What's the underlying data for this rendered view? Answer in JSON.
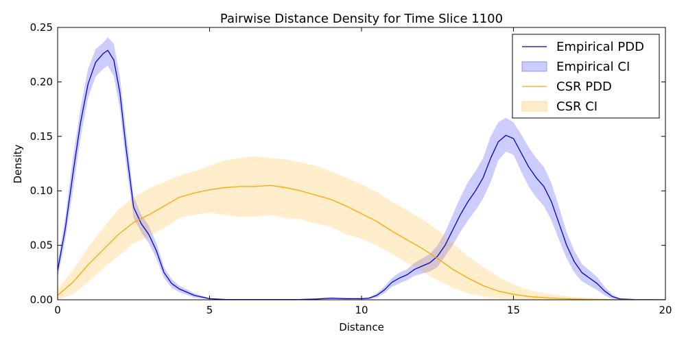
{
  "chart_data": {
    "type": "line",
    "title": "Pairwise Distance Density for Time Slice 1100",
    "xlabel": "Distance",
    "ylabel": "Density",
    "xlim": [
      0,
      20
    ],
    "ylim": [
      0,
      0.25
    ],
    "xticks": [
      0,
      5,
      10,
      15,
      20
    ],
    "xtick_labels": [
      "0",
      "5",
      "10",
      "15",
      "20"
    ],
    "yticks": [
      0.0,
      0.05,
      0.1,
      0.15,
      0.2,
      0.25
    ],
    "ytick_labels": [
      "0.00",
      "0.05",
      "0.10",
      "0.15",
      "0.20",
      "0.25"
    ],
    "grid": false,
    "legend_position": "top-right",
    "legend": [
      {
        "label": "Empirical PDD",
        "kind": "line",
        "color": "#0000cc"
      },
      {
        "label": "Empirical CI",
        "kind": "band",
        "color": "#0000ff"
      },
      {
        "label": "CSR PDD",
        "kind": "line",
        "color": "#ffa500"
      },
      {
        "label": "CSR CI",
        "kind": "band",
        "color": "#ffa500"
      }
    ],
    "series": [
      {
        "name": "Empirical PDD",
        "color": "#0000cc",
        "fill_color": "#0000ff",
        "x": [
          0,
          0.25,
          0.5,
          0.75,
          1.0,
          1.25,
          1.5,
          1.65,
          1.85,
          2.05,
          2.25,
          2.5,
          2.75,
          3.0,
          3.25,
          3.5,
          3.75,
          4.0,
          4.5,
          5.0,
          5.5,
          6,
          7,
          8,
          8.5,
          9,
          9.5,
          10,
          10.25,
          10.5,
          10.75,
          11,
          11.25,
          11.5,
          11.75,
          12,
          12.25,
          12.5,
          12.75,
          13,
          13.25,
          13.5,
          13.75,
          14,
          14.25,
          14.5,
          14.75,
          15,
          15.25,
          15.5,
          15.75,
          16,
          16.25,
          16.5,
          16.75,
          17,
          17.25,
          17.5,
          17.75,
          18,
          18.25,
          18.5,
          19,
          20
        ],
        "y": [
          0.027,
          0.065,
          0.115,
          0.162,
          0.198,
          0.218,
          0.226,
          0.229,
          0.22,
          0.19,
          0.14,
          0.085,
          0.07,
          0.06,
          0.045,
          0.025,
          0.015,
          0.01,
          0.004,
          0.001,
          0.0003,
          0.0002,
          0.0002,
          0.0003,
          0.0007,
          0.0015,
          0.001,
          0.001,
          0.0015,
          0.004,
          0.009,
          0.016,
          0.02,
          0.023,
          0.028,
          0.031,
          0.034,
          0.04,
          0.05,
          0.064,
          0.078,
          0.09,
          0.1,
          0.112,
          0.13,
          0.145,
          0.151,
          0.148,
          0.135,
          0.122,
          0.112,
          0.104,
          0.09,
          0.07,
          0.05,
          0.035,
          0.025,
          0.02,
          0.015,
          0.008,
          0.003,
          0.0008,
          0.0002,
          0.0001
        ],
        "ci_lower": [
          0.02,
          0.055,
          0.1,
          0.148,
          0.185,
          0.205,
          0.212,
          0.215,
          0.205,
          0.175,
          0.125,
          0.075,
          0.062,
          0.052,
          0.038,
          0.02,
          0.011,
          0.007,
          0.002,
          0.0005,
          0.0001,
          0.0001,
          0.0001,
          0.0001,
          0.0003,
          0.0008,
          0.0005,
          0.0005,
          0.0008,
          0.002,
          0.006,
          0.012,
          0.015,
          0.018,
          0.022,
          0.024,
          0.026,
          0.03,
          0.04,
          0.05,
          0.062,
          0.073,
          0.082,
          0.093,
          0.108,
          0.128,
          0.136,
          0.133,
          0.118,
          0.104,
          0.094,
          0.086,
          0.073,
          0.055,
          0.038,
          0.025,
          0.017,
          0.013,
          0.009,
          0.004,
          0.001,
          0.0003,
          0.0001,
          0.0
        ],
        "ci_upper": [
          0.034,
          0.075,
          0.13,
          0.175,
          0.212,
          0.23,
          0.236,
          0.241,
          0.235,
          0.205,
          0.155,
          0.095,
          0.078,
          0.068,
          0.052,
          0.03,
          0.019,
          0.013,
          0.006,
          0.0015,
          0.0005,
          0.0003,
          0.0003,
          0.0005,
          0.0011,
          0.0022,
          0.0015,
          0.0015,
          0.0022,
          0.006,
          0.012,
          0.02,
          0.025,
          0.028,
          0.034,
          0.038,
          0.042,
          0.05,
          0.062,
          0.078,
          0.094,
          0.108,
          0.118,
          0.13,
          0.15,
          0.163,
          0.167,
          0.163,
          0.152,
          0.14,
          0.13,
          0.122,
          0.107,
          0.085,
          0.062,
          0.045,
          0.033,
          0.027,
          0.021,
          0.012,
          0.005,
          0.0013,
          0.0003,
          0.0002
        ]
      },
      {
        "name": "CSR PDD",
        "color": "#ffa500",
        "fill_color": "#ffa500",
        "x": [
          0,
          0.5,
          1,
          1.5,
          2,
          2.5,
          3,
          3.5,
          4,
          4.5,
          5,
          5.5,
          6,
          6.5,
          7,
          7.5,
          8,
          8.5,
          9,
          9.5,
          10,
          10.5,
          11,
          11.5,
          12,
          12.5,
          13,
          13.5,
          14,
          14.5,
          15,
          15.5,
          16,
          16.5,
          17,
          17.5,
          18,
          18.5,
          19,
          20
        ],
        "y": [
          0.004,
          0.016,
          0.032,
          0.046,
          0.06,
          0.071,
          0.078,
          0.086,
          0.094,
          0.098,
          0.101,
          0.103,
          0.104,
          0.104,
          0.105,
          0.103,
          0.1,
          0.096,
          0.092,
          0.086,
          0.079,
          0.072,
          0.063,
          0.055,
          0.047,
          0.038,
          0.028,
          0.02,
          0.013,
          0.008,
          0.005,
          0.003,
          0.002,
          0.0012,
          0.0007,
          0.0004,
          0.0002,
          0.0001,
          0.0,
          0.0
        ],
        "ci_lower": [
          0.0,
          0.005,
          0.016,
          0.029,
          0.04,
          0.052,
          0.058,
          0.066,
          0.075,
          0.078,
          0.08,
          0.078,
          0.076,
          0.076,
          0.078,
          0.075,
          0.074,
          0.07,
          0.067,
          0.06,
          0.056,
          0.05,
          0.042,
          0.034,
          0.026,
          0.018,
          0.011,
          0.006,
          0.003,
          0.0012,
          0.0005,
          0.0002,
          0.0001,
          0.0,
          0.0,
          0.0,
          0.0,
          0.0,
          0.0,
          0.0
        ],
        "ci_upper": [
          0.01,
          0.027,
          0.048,
          0.066,
          0.083,
          0.094,
          0.102,
          0.108,
          0.114,
          0.118,
          0.123,
          0.128,
          0.13,
          0.132,
          0.13,
          0.129,
          0.126,
          0.123,
          0.118,
          0.112,
          0.106,
          0.099,
          0.09,
          0.082,
          0.074,
          0.064,
          0.052,
          0.04,
          0.03,
          0.021,
          0.014,
          0.009,
          0.006,
          0.004,
          0.0025,
          0.0015,
          0.0008,
          0.0004,
          0.0002,
          0.0001
        ]
      }
    ]
  }
}
